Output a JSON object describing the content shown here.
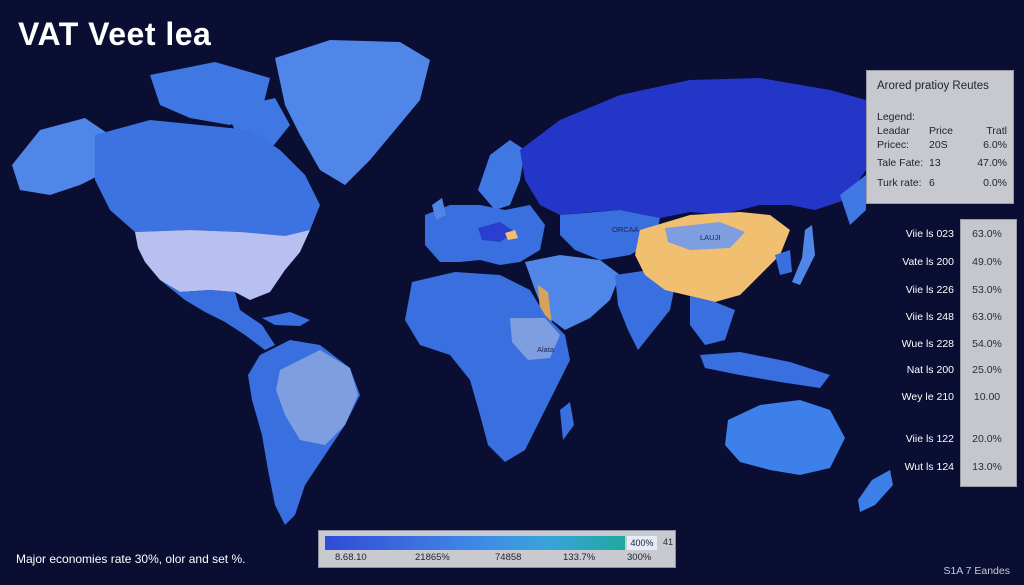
{
  "title": "VAT Veet lea",
  "legend_panel": {
    "title": "Arored pratioy Reutes",
    "label": "Legend:",
    "rows": [
      {
        "c1": "Leadar",
        "c2": "Price",
        "c3": "Tratl"
      },
      {
        "c1": "Pricec:",
        "c2": "20S",
        "c3": "6.0%"
      },
      {
        "c1": "Tale Fate:",
        "c2": "13",
        "c3": "47.0%"
      },
      {
        "c1": "Turk rate:",
        "c2": "6",
        "c3": "0.0%"
      }
    ]
  },
  "rate_list": [
    {
      "label": "Viie ls 023",
      "value": "63.0%"
    },
    {
      "label": "Vate ls 200",
      "value": "49.0%"
    },
    {
      "label": "Viie ls 226",
      "value": "53.0%"
    },
    {
      "label": "Viie ls 248",
      "value": "63.0%"
    },
    {
      "label": "Wue ls 228",
      "value": "54.0%"
    },
    {
      "label": "Nat ls 200",
      "value": "25.0%"
    },
    {
      "label": "Wey le 210",
      "value": "10.00"
    },
    {
      "label": "Viie ls 122",
      "value": "20.0%"
    },
    {
      "label": "Wut ls 124",
      "value": "13.0%"
    }
  ],
  "scale_bar": {
    "chip": "400%",
    "end_value": "41",
    "ticks": [
      "8.68.10",
      "21865%",
      "74858",
      "133.7%",
      "300%"
    ]
  },
  "map_labels": [
    "ORCAA",
    "LAUJI",
    "Alata"
  ],
  "footer_note": "Major economies rate 30%, olor and set %.",
  "footer_credit": "S1A 7 Eandes",
  "colors": {
    "background": "#0b0e33",
    "land_default": "#3a6fe0",
    "russia": "#2436c8",
    "china": "#f0c070",
    "usa": "#b8c0f2",
    "light_region": "#7f9ee0"
  }
}
